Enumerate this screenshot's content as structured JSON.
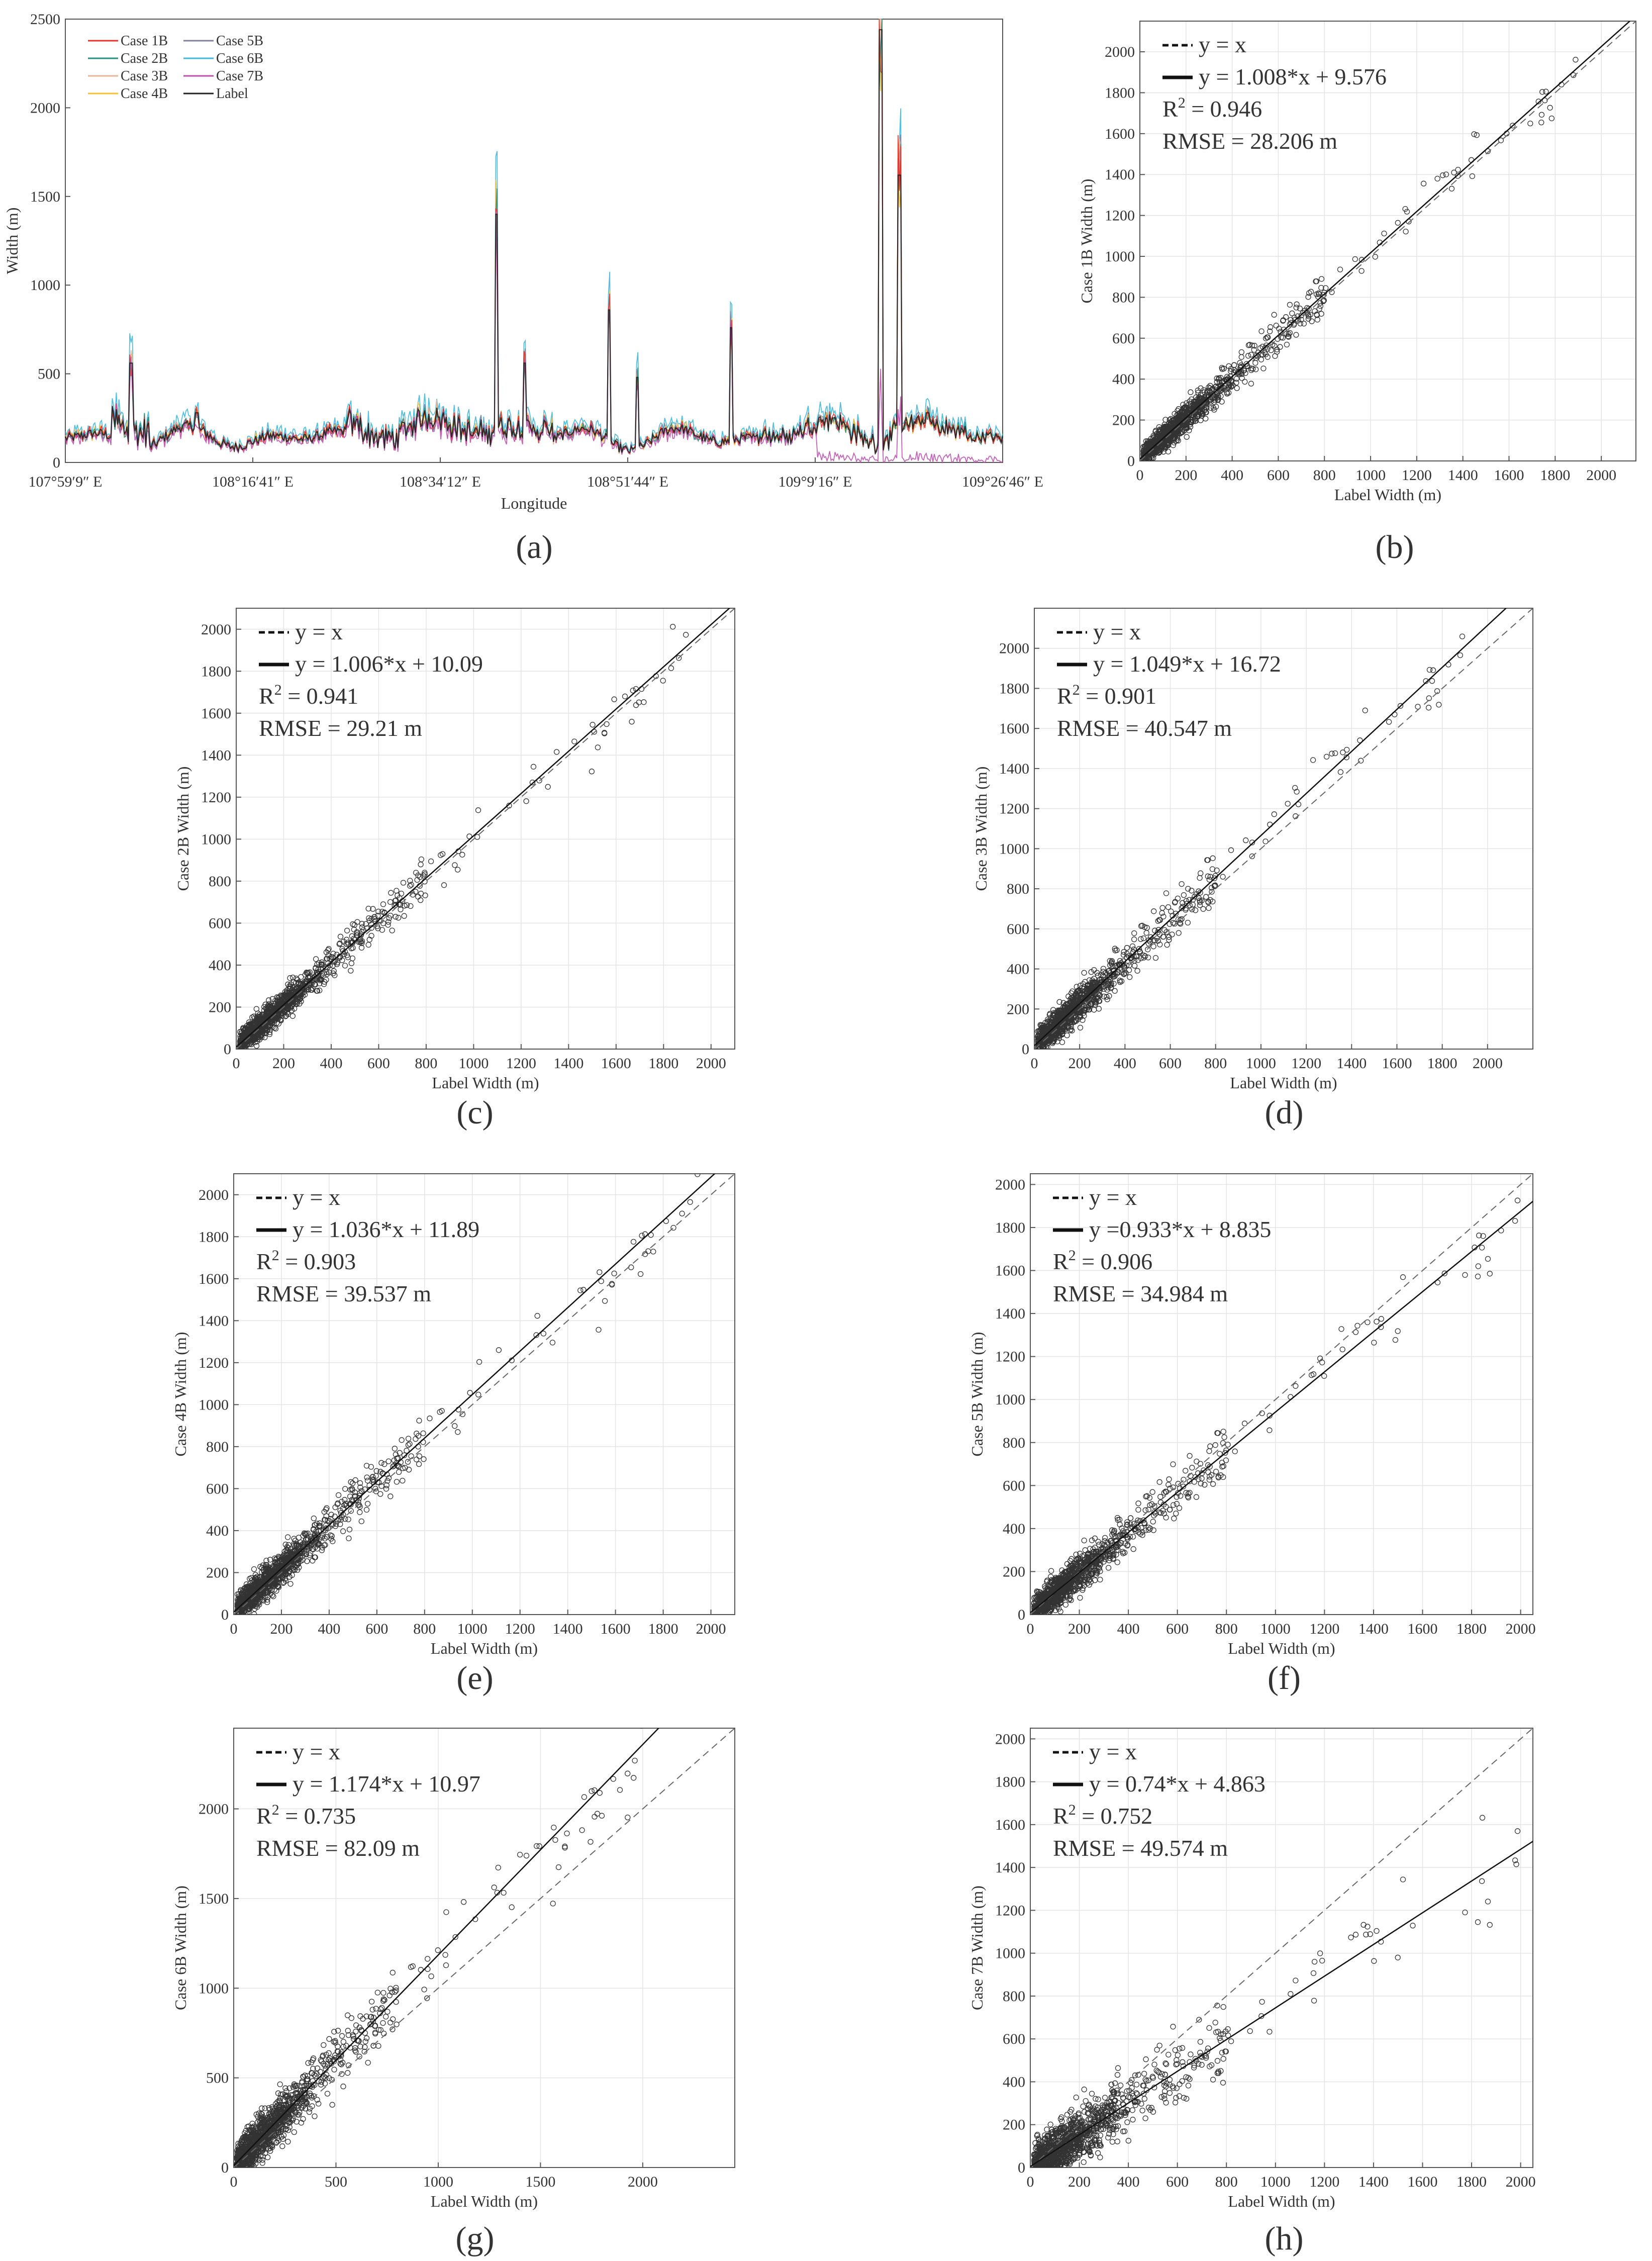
{
  "chart_data": [
    {
      "type": "line",
      "panel_label": "(a)",
      "xlabel": "Longitude",
      "ylabel": "Width (m)",
      "ylim": [
        0,
        2500
      ],
      "yticks": [
        "0",
        "500",
        "1000",
        "1500",
        "2000",
        "2500"
      ],
      "xticks": [
        "107°59′9″ E",
        "108°16′41″ E",
        "108°34′12″ E",
        "108°51′44″ E",
        "109°9′16″ E",
        "109°26′46″ E"
      ],
      "grid": false,
      "legend_position": "top-left",
      "series": [
        {
          "name": "Case 1B",
          "color": "#e8312b"
        },
        {
          "name": "Case 2B",
          "color": "#2a8f80"
        },
        {
          "name": "Case 3B",
          "color": "#e8b398"
        },
        {
          "name": "Case 4B",
          "color": "#f2c230"
        },
        {
          "name": "Case 5B",
          "color": "#7f7f9f"
        },
        {
          "name": "Case 6B",
          "color": "#3fb8dc"
        },
        {
          "name": "Case 7B",
          "color": "#c050b0"
        },
        {
          "name": "Label",
          "color": "#222222"
        }
      ],
      "spikes": [
        {
          "x": 0.07,
          "y": 560
        },
        {
          "x": 0.14,
          "y": 280
        },
        {
          "x": 0.46,
          "y": 1400
        },
        {
          "x": 0.49,
          "y": 560
        },
        {
          "x": 0.58,
          "y": 860
        },
        {
          "x": 0.61,
          "y": 480
        },
        {
          "x": 0.71,
          "y": 760
        },
        {
          "x": 0.87,
          "y": 2440
        },
        {
          "x": 0.89,
          "y": 1620
        },
        {
          "x": 0.92,
          "y": 280
        }
      ]
    },
    {
      "type": "scatter",
      "panel_label": "(b)",
      "xlabel": "Label Width (m)",
      "ylabel": "Case 1B Width (m)",
      "xlim": [
        0,
        2150
      ],
      "ylim": [
        0,
        2150
      ],
      "xticks": [
        0,
        200,
        400,
        600,
        800,
        1000,
        1200,
        1400,
        1600,
        1800,
        2000
      ],
      "yticks": [
        0,
        200,
        400,
        600,
        800,
        1000,
        1200,
        1400,
        1600,
        1800,
        2000
      ],
      "legend": [
        "y = x",
        "y = 1.008*x + 9.576",
        "R2 = 0.946",
        "RMSE = 28.206 m"
      ],
      "slope": 1.008,
      "intercept": 9.576,
      "r2": 0.946,
      "rmse": 28.206,
      "max_label": 1900,
      "grid": true
    },
    {
      "type": "scatter",
      "panel_label": "(c)",
      "xlabel": "Label Width (m)",
      "ylabel": "Case 2B Width (m)",
      "xlim": [
        0,
        2100
      ],
      "ylim": [
        0,
        2100
      ],
      "xticks": [
        0,
        200,
        400,
        600,
        800,
        1000,
        1200,
        1400,
        1600,
        1800,
        2000
      ],
      "yticks": [
        0,
        200,
        400,
        600,
        800,
        1000,
        1200,
        1400,
        1600,
        1800,
        2000
      ],
      "legend": [
        "y = x",
        "y = 1.006*x + 10.09",
        "R2 = 0.941",
        "RMSE = 29.21 m"
      ],
      "slope": 1.006,
      "intercept": 10.09,
      "r2": 0.941,
      "rmse": 29.21,
      "max_label": 1900,
      "grid": true
    },
    {
      "type": "scatter",
      "panel_label": "(d)",
      "xlabel": "Label Width (m)",
      "ylabel": "Case 3B Width (m)",
      "xlim": [
        0,
        2200
      ],
      "ylim": [
        0,
        2200
      ],
      "xticks": [
        0,
        200,
        400,
        600,
        800,
        1000,
        1200,
        1400,
        1600,
        1800,
        2000
      ],
      "yticks": [
        0,
        200,
        400,
        600,
        800,
        1000,
        1200,
        1400,
        1600,
        1800,
        2000
      ],
      "legend": [
        "y = x",
        "y = 1.049*x + 16.72",
        "R2 = 0.901",
        "RMSE = 40.547 m"
      ],
      "slope": 1.049,
      "intercept": 16.72,
      "r2": 0.901,
      "rmse": 40.547,
      "max_label": 1900,
      "grid": true
    },
    {
      "type": "scatter",
      "panel_label": "(e)",
      "xlabel": "Label Width (m)",
      "ylabel": "Case 4B Width (m)",
      "xlim": [
        0,
        2100
      ],
      "ylim": [
        0,
        2100
      ],
      "xticks": [
        0,
        200,
        400,
        600,
        800,
        1000,
        1200,
        1400,
        1600,
        1800,
        2000
      ],
      "yticks": [
        0,
        200,
        400,
        600,
        800,
        1000,
        1200,
        1400,
        1600,
        1800,
        2000
      ],
      "legend": [
        "y = x",
        "y = 1.036*x + 11.89",
        "R2 = 0.903",
        "RMSE = 39.537 m"
      ],
      "slope": 1.036,
      "intercept": 11.89,
      "r2": 0.903,
      "rmse": 39.537,
      "max_label": 1950,
      "grid": true
    },
    {
      "type": "scatter",
      "panel_label": "(f)",
      "xlabel": "Label Width (m)",
      "ylabel": "Case 5B Width (m)",
      "xlim": [
        0,
        2050
      ],
      "ylim": [
        0,
        2050
      ],
      "xticks": [
        0,
        200,
        400,
        600,
        800,
        1000,
        1200,
        1400,
        1600,
        1800,
        2000
      ],
      "yticks": [
        0,
        200,
        400,
        600,
        800,
        1000,
        1200,
        1400,
        1600,
        1800,
        2000
      ],
      "legend": [
        "y = x",
        "y =0.933*x + 8.835",
        "R2 = 0.906",
        "RMSE = 34.984 m"
      ],
      "slope": 0.933,
      "intercept": 8.835,
      "r2": 0.906,
      "rmse": 34.984,
      "max_label": 2000,
      "grid": true
    },
    {
      "type": "scatter",
      "panel_label": "(g)",
      "xlabel": "Label Width (m)",
      "ylabel": "Case 6B Width (m)",
      "xlim": [
        0,
        2450
      ],
      "ylim": [
        0,
        2450
      ],
      "xticks": [
        0,
        500,
        1000,
        1500,
        2000
      ],
      "yticks": [
        0,
        500,
        1000,
        1500,
        2000
      ],
      "legend": [
        "y = x",
        "y = 1.174*x + 10.97",
        "R2 = 0.735",
        "RMSE = 82.09 m"
      ],
      "slope": 1.174,
      "intercept": 10.97,
      "r2": 0.735,
      "rmse": 82.09,
      "max_label": 2000,
      "grid": true
    },
    {
      "type": "scatter",
      "panel_label": "(h)",
      "xlabel": "Label Width (m)",
      "ylabel": "Case 7B Width (m)",
      "xlim": [
        0,
        2050
      ],
      "ylim": [
        0,
        2050
      ],
      "xticks": [
        0,
        200,
        400,
        600,
        800,
        1000,
        1200,
        1400,
        1600,
        1800,
        2000
      ],
      "yticks": [
        0,
        200,
        400,
        600,
        800,
        1000,
        1200,
        1400,
        1600,
        1800,
        2000
      ],
      "legend": [
        "y = x",
        "y = 0.74*x + 4.863",
        "R2 = 0.752",
        "RMSE = 49.574 m"
      ],
      "slope": 0.74,
      "intercept": 4.863,
      "r2": 0.752,
      "rmse": 49.574,
      "max_label": 2000,
      "grid": true
    }
  ]
}
